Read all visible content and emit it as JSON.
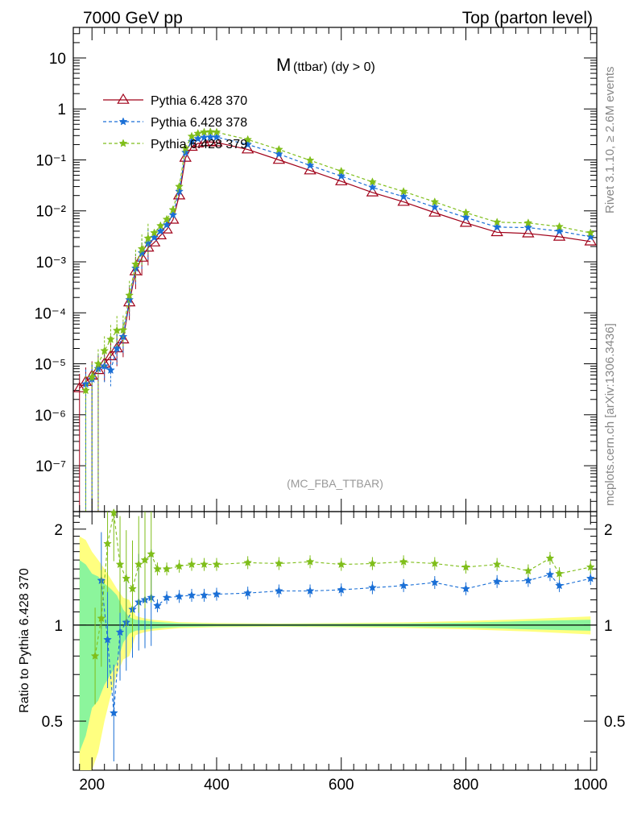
{
  "header": {
    "left": "7000 GeV pp",
    "right": "Top (parton level)"
  },
  "side_labels": {
    "rivet": "Rivet 3.1.10, ≥ 2.6M events",
    "mcplots": "mcplots.cern.ch [arXiv:1306.3436]"
  },
  "colors": {
    "s370": "#a00018",
    "s378": "#1a6fd6",
    "s379": "#7fbe1a",
    "band_yellow": "#ffff80",
    "band_green": "#8cf59c"
  },
  "chart_data": [
    {
      "type": "line",
      "title_main": "M",
      "title_sub": "(ttbar) (dy > 0)",
      "watermark": "(MC_FBA_TTBAR)",
      "xlim": [
        170,
        1010
      ],
      "ylim_log10": [
        -7.9,
        1.6
      ],
      "y_scale": "log",
      "legend_position": "top-left",
      "y_ticks": [
        {
          "value": 1e-07,
          "label": "10⁻⁷"
        },
        {
          "value": 1e-06,
          "label": "10⁻⁶"
        },
        {
          "value": 1e-05,
          "label": "10⁻⁵"
        },
        {
          "value": 0.0001,
          "label": "10⁻⁴"
        },
        {
          "value": 0.001,
          "label": "10⁻³"
        },
        {
          "value": 0.01,
          "label": "10⁻²"
        },
        {
          "value": 0.1,
          "label": "10⁻¹"
        },
        {
          "value": 1,
          "label": "1"
        },
        {
          "value": 10,
          "label": "10"
        }
      ],
      "series": [
        {
          "name": "Pythia 6.428 370",
          "marker": "open-triangle",
          "line": "solid",
          "color_key": "s370",
          "x": [
            180,
            190,
            200,
            210,
            220,
            230,
            240,
            250,
            260,
            270,
            280,
            290,
            300,
            310,
            320,
            330,
            340,
            350,
            360,
            370,
            380,
            390,
            400,
            450,
            500,
            550,
            600,
            650,
            700,
            750,
            800,
            850,
            900,
            950,
            1000
          ],
          "y": [
            3.3e-06,
            4.4e-06,
            5.8e-06,
            7.5e-06,
            1e-05,
            1.4e-05,
            2e-05,
            3e-05,
            0.00016,
            0.00065,
            0.0012,
            0.0019,
            0.0024,
            0.0033,
            0.0043,
            0.0067,
            0.02,
            0.11,
            0.18,
            0.21,
            0.22,
            0.225,
            0.22,
            0.16,
            0.1,
            0.062,
            0.038,
            0.023,
            0.015,
            0.0092,
            0.0058,
            0.0038,
            0.0036,
            0.0031,
            0.0025
          ]
        },
        {
          "name": "Pythia 6.428 378",
          "marker": "star",
          "line": "dashed",
          "color_key": "s378",
          "x": [
            190,
            200,
            210,
            220,
            230,
            240,
            250,
            260,
            270,
            280,
            290,
            300,
            310,
            320,
            330,
            340,
            350,
            360,
            370,
            380,
            390,
            400,
            450,
            500,
            550,
            600,
            650,
            700,
            750,
            800,
            850,
            900,
            950,
            1000
          ],
          "y": [
            4e-06,
            5e-06,
            8e-06,
            9e-06,
            7.5e-06,
            2e-05,
            3.4e-05,
            0.00018,
            0.00075,
            0.0015,
            0.0023,
            0.003,
            0.004,
            0.0053,
            0.0083,
            0.024,
            0.14,
            0.23,
            0.26,
            0.275,
            0.28,
            0.28,
            0.2,
            0.13,
            0.078,
            0.048,
            0.029,
            0.019,
            0.0118,
            0.0074,
            0.0048,
            0.0047,
            0.004,
            0.0031
          ]
        },
        {
          "name": "Pythia 6.428 379",
          "marker": "star",
          "line": "dashed",
          "color_key": "s379",
          "x": [
            190,
            200,
            210,
            220,
            230,
            240,
            250,
            260,
            270,
            280,
            290,
            300,
            310,
            320,
            330,
            340,
            350,
            360,
            370,
            380,
            390,
            400,
            450,
            500,
            550,
            600,
            650,
            700,
            750,
            800,
            850,
            900,
            950,
            1000
          ],
          "y": [
            3e-06,
            5.5e-06,
            1e-05,
            1.8e-05,
            3e-05,
            4.5e-05,
            4.6e-05,
            0.00022,
            0.0009,
            0.0018,
            0.0029,
            0.0037,
            0.0051,
            0.0068,
            0.0105,
            0.03,
            0.17,
            0.29,
            0.33,
            0.35,
            0.355,
            0.35,
            0.25,
            0.16,
            0.098,
            0.06,
            0.037,
            0.024,
            0.015,
            0.0092,
            0.006,
            0.0058,
            0.0049,
            0.0037
          ]
        }
      ]
    },
    {
      "type": "line",
      "ylabel": "Ratio to Pythia 6.428 370",
      "xlim": [
        170,
        1010
      ],
      "ylim_log10": [
        -0.455,
        0.356
      ],
      "y_scale": "log",
      "x_ticks": [
        200,
        400,
        600,
        800,
        1000
      ],
      "y_ticks": [
        {
          "value": 0.5,
          "label": "0.5"
        },
        {
          "value": 1,
          "label": "1"
        },
        {
          "value": 2,
          "label": "2"
        }
      ],
      "reference_line": 1,
      "band": {
        "x": [
          180,
          190,
          200,
          210,
          220,
          230,
          240,
          250,
          260,
          270,
          280,
          290,
          300,
          320,
          340,
          360,
          400,
          500,
          600,
          700,
          800,
          900,
          1000
        ],
        "yellow_half_width": [
          0.9,
          0.85,
          0.7,
          0.6,
          0.5,
          0.4,
          0.3,
          0.22,
          0.2,
          0.07,
          0.055,
          0.045,
          0.038,
          0.03,
          0.022,
          0.02,
          0.015,
          0.012,
          0.015,
          0.02,
          0.03,
          0.045,
          0.065
        ],
        "green_half_width": [
          0.6,
          0.55,
          0.45,
          0.42,
          0.35,
          0.3,
          0.24,
          0.12,
          0.06,
          0.04,
          0.035,
          0.03,
          0.024,
          0.018,
          0.014,
          0.012,
          0.009,
          0.008,
          0.01,
          0.012,
          0.018,
          0.03,
          0.04
        ]
      },
      "series": [
        {
          "name": "Pythia 6.428 378",
          "color_key": "s378",
          "x": [
            215,
            225,
            235,
            245,
            255,
            265,
            275,
            285,
            295,
            305,
            320,
            340,
            360,
            380,
            400,
            450,
            500,
            550,
            600,
            650,
            700,
            750,
            800,
            850,
            900,
            935,
            950,
            1000
          ],
          "y": [
            1.38,
            0.9,
            0.53,
            0.95,
            1.02,
            1.12,
            1.18,
            1.2,
            1.22,
            1.15,
            1.22,
            1.23,
            1.24,
            1.24,
            1.25,
            1.26,
            1.28,
            1.28,
            1.29,
            1.31,
            1.33,
            1.36,
            1.3,
            1.37,
            1.38,
            1.44,
            1.33,
            1.4
          ]
        },
        {
          "name": "Pythia 6.428 379",
          "color_key": "s379",
          "x": [
            205,
            215,
            225,
            235,
            245,
            255,
            265,
            275,
            285,
            295,
            305,
            320,
            340,
            360,
            380,
            400,
            450,
            500,
            550,
            600,
            650,
            700,
            750,
            800,
            850,
            900,
            935,
            950,
            1000
          ],
          "y": [
            0.8,
            1.05,
            1.8,
            2.25,
            1.55,
            1.4,
            1.3,
            1.55,
            1.6,
            1.67,
            1.5,
            1.5,
            1.53,
            1.55,
            1.55,
            1.55,
            1.57,
            1.56,
            1.58,
            1.55,
            1.56,
            1.58,
            1.56,
            1.52,
            1.55,
            1.48,
            1.62,
            1.45,
            1.52
          ]
        }
      ]
    }
  ]
}
